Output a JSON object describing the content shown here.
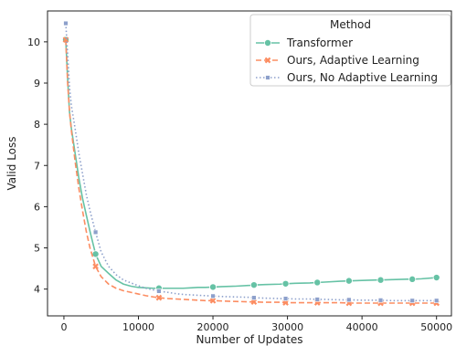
{
  "chart_data": {
    "type": "line",
    "xlabel": "Number of Updates",
    "ylabel": "Valid Loss",
    "xlim": [
      -2200,
      52000
    ],
    "ylim": [
      3.35,
      10.75
    ],
    "xticks": [
      0,
      10000,
      20000,
      30000,
      40000,
      50000
    ],
    "yticks": [
      4,
      5,
      6,
      7,
      8,
      9,
      10
    ],
    "grid": false,
    "legend": {
      "title": "Method",
      "placement": "top-right"
    },
    "series": [
      {
        "name": "Transformer",
        "color": "#66c2a5",
        "dash": "solid",
        "marker": "circle",
        "x": [
          250,
          500,
          750,
          1000,
          1500,
          2000,
          2500,
          3000,
          3500,
          4250,
          5000,
          6000,
          7000,
          8000,
          9000,
          10000,
          11000,
          12000,
          12750,
          14000,
          15000,
          16000,
          17000,
          18000,
          19000,
          20000,
          21250,
          23000,
          25000,
          25500,
          27000,
          29000,
          29750,
          31000,
          33000,
          34000,
          35000,
          37000,
          38250,
          40000,
          42000,
          42500,
          44000,
          46000,
          46750,
          48000,
          50000
        ],
        "y": [
          10.05,
          9.1,
          8.3,
          7.9,
          7.3,
          6.7,
          6.2,
          5.8,
          5.4,
          4.85,
          4.55,
          4.38,
          4.22,
          4.12,
          4.07,
          4.04,
          4.03,
          4.02,
          4.02,
          4.02,
          4.02,
          4.02,
          4.03,
          4.04,
          4.04,
          4.05,
          4.06,
          4.07,
          4.09,
          4.1,
          4.11,
          4.12,
          4.13,
          4.14,
          4.15,
          4.16,
          4.17,
          4.19,
          4.2,
          4.21,
          4.22,
          4.22,
          4.23,
          4.24,
          4.24,
          4.25,
          4.28
        ]
      },
      {
        "name": "Ours, Adaptive Learning",
        "color": "#fc8d62",
        "dash": "dashed",
        "marker": "x",
        "x": [
          250,
          500,
          750,
          1000,
          1500,
          2000,
          2500,
          3000,
          3500,
          4250,
          5000,
          6000,
          7000,
          8000,
          9000,
          10000,
          11000,
          12000,
          12750,
          14000,
          15000,
          16000,
          17000,
          18000,
          19000,
          20000,
          21250,
          23000,
          25000,
          25500,
          27000,
          29000,
          29750,
          31000,
          33000,
          34000,
          35000,
          37000,
          38250,
          40000,
          42000,
          42500,
          44000,
          46000,
          46750,
          48000,
          50000
        ],
        "y": [
          10.05,
          9.0,
          8.3,
          7.85,
          7.1,
          6.45,
          5.9,
          5.4,
          5.0,
          4.55,
          4.3,
          4.12,
          4.02,
          3.96,
          3.92,
          3.88,
          3.84,
          3.81,
          3.79,
          3.77,
          3.76,
          3.75,
          3.74,
          3.73,
          3.72,
          3.72,
          3.71,
          3.7,
          3.69,
          3.69,
          3.68,
          3.68,
          3.67,
          3.67,
          3.67,
          3.67,
          3.67,
          3.67,
          3.66,
          3.66,
          3.66,
          3.66,
          3.66,
          3.66,
          3.66,
          3.66,
          3.66
        ]
      },
      {
        "name": "Ours, No Adaptive Learning",
        "color": "#8da0cb",
        "dash": "dotted",
        "marker": "square",
        "x": [
          250,
          500,
          750,
          1000,
          1500,
          2000,
          2500,
          3000,
          3500,
          4250,
          5000,
          6000,
          7000,
          8000,
          9000,
          10000,
          11000,
          12000,
          12750,
          14000,
          15000,
          16000,
          17000,
          18000,
          19000,
          20000,
          21250,
          23000,
          25000,
          25500,
          27000,
          29000,
          29750,
          31000,
          33000,
          34000,
          35000,
          37000,
          38250,
          40000,
          42000,
          42500,
          44000,
          46000,
          46750,
          48000,
          50000
        ],
        "y": [
          10.45,
          9.7,
          8.9,
          8.45,
          7.9,
          7.3,
          6.8,
          6.3,
          5.9,
          5.38,
          4.9,
          4.55,
          4.35,
          4.22,
          4.15,
          4.08,
          4.02,
          3.98,
          3.95,
          3.92,
          3.89,
          3.87,
          3.86,
          3.85,
          3.84,
          3.83,
          3.82,
          3.81,
          3.8,
          3.79,
          3.78,
          3.77,
          3.77,
          3.76,
          3.76,
          3.75,
          3.75,
          3.74,
          3.74,
          3.73,
          3.73,
          3.73,
          3.72,
          3.72,
          3.72,
          3.72,
          3.72
        ]
      }
    ],
    "marker_every": [
      0,
      9,
      18,
      25,
      29,
      32,
      35,
      38,
      41,
      44,
      46
    ],
    "xtick_labels": [
      "0",
      "10000",
      "20000",
      "30000",
      "40000",
      "50000"
    ],
    "ytick_labels": [
      "4",
      "5",
      "6",
      "7",
      "8",
      "9",
      "10"
    ]
  }
}
